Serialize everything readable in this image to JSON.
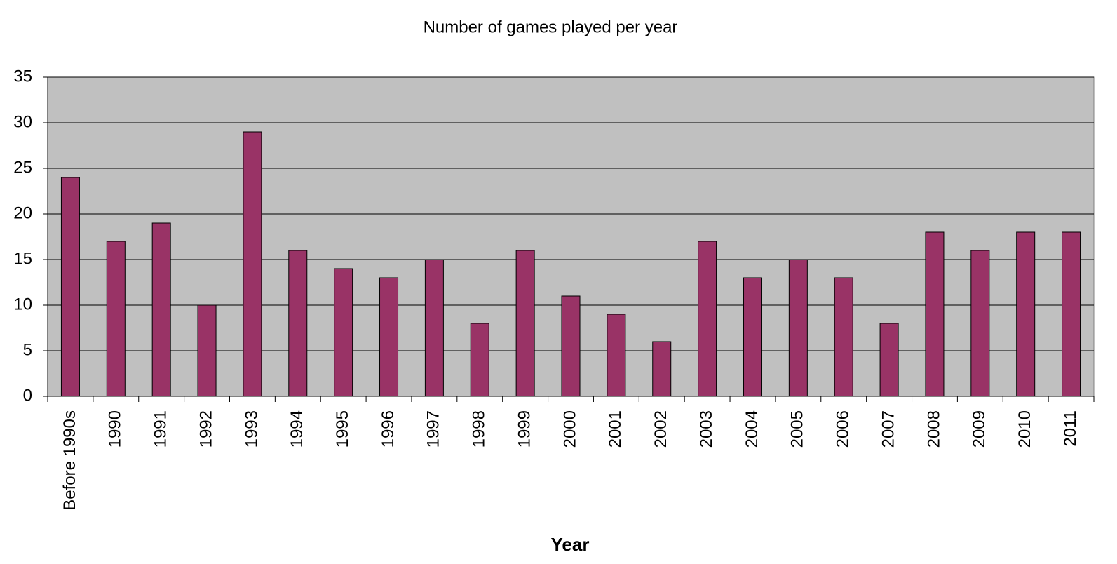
{
  "chart_data": {
    "type": "bar",
    "title": "Number of games played per year",
    "x_label": "Year",
    "categories": [
      "Before 1990s",
      "1990",
      "1991",
      "1992",
      "1993",
      "1994",
      "1995",
      "1996",
      "1997",
      "1998",
      "1999",
      "2000",
      "2001",
      "2002",
      "2003",
      "2004",
      "2005",
      "2006",
      "2007",
      "2008",
      "2009",
      "2010",
      "2011"
    ],
    "values": [
      24,
      17,
      19,
      10,
      29,
      16,
      14,
      13,
      15,
      8,
      16,
      11,
      9,
      6,
      17,
      13,
      15,
      13,
      8,
      18,
      16,
      18,
      18
    ],
    "color": "#993366",
    "ylim": [
      0,
      35
    ],
    "yticks": [
      0,
      5,
      10,
      15,
      20,
      25,
      30,
      35
    ],
    "grid": true
  }
}
